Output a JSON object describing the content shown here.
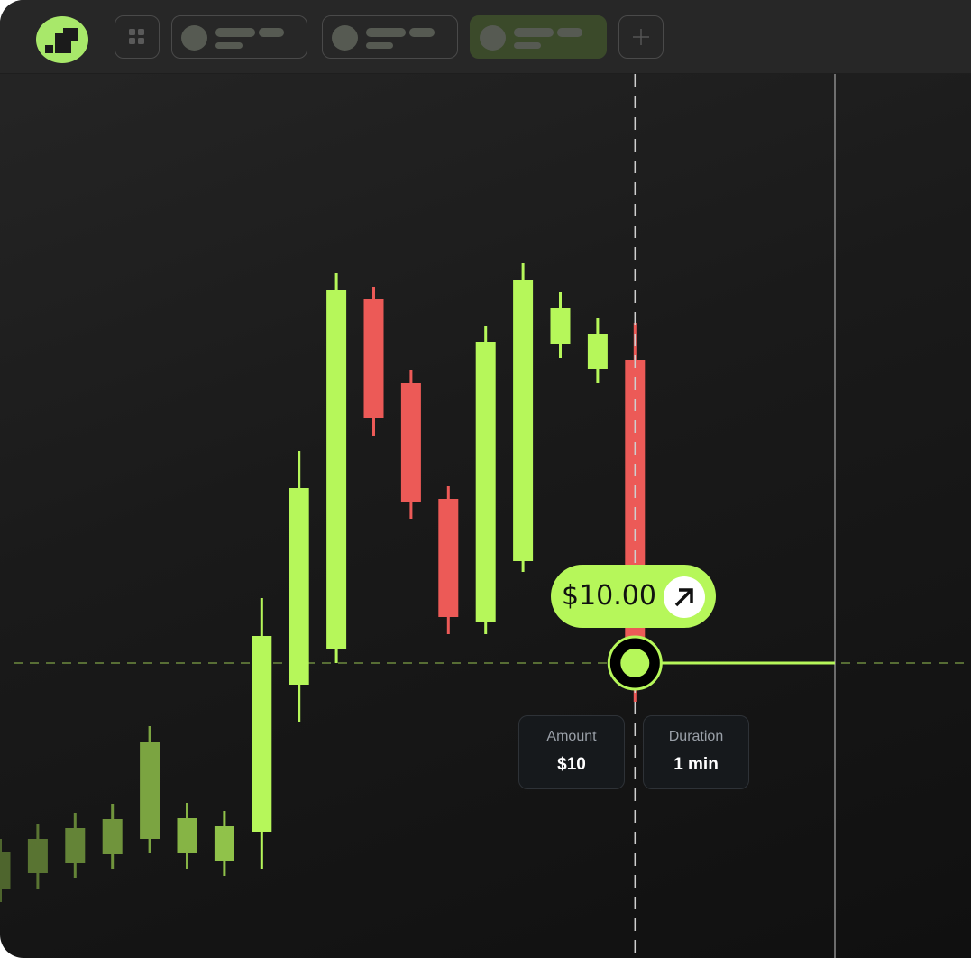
{
  "topbar": {
    "tabs": [
      {
        "state": "inactive"
      },
      {
        "state": "inactive"
      },
      {
        "state": "active"
      }
    ],
    "icons": {
      "logo": "app-logo",
      "grid": "grid-icon",
      "add": "plus-icon"
    }
  },
  "trade": {
    "price_label": "$10.00",
    "direction_icon": "arrow-up-right-icon",
    "amount_label": "Amount",
    "amount_value": "$10",
    "duration_label": "Duration",
    "duration_value": "1 min"
  },
  "colors": {
    "up": "#b6f75a",
    "down": "#ec5a57",
    "accent": "#b6f75a"
  },
  "chart_data": {
    "type": "candlestick",
    "grid": false,
    "strike_price": 327,
    "candles": [
      {
        "o": 77,
        "h": 132,
        "l": 62,
        "c": 117
      },
      {
        "o": 94,
        "h": 149,
        "l": 77,
        "c": 132
      },
      {
        "o": 105,
        "h": 161,
        "l": 89,
        "c": 144
      },
      {
        "o": 115,
        "h": 171,
        "l": 99,
        "c": 154
      },
      {
        "o": 132,
        "h": 257,
        "l": 116,
        "c": 240
      },
      {
        "o": 116,
        "h": 172,
        "l": 99,
        "c": 155
      },
      {
        "o": 107,
        "h": 163,
        "l": 91,
        "c": 146
      },
      {
        "o": 140,
        "h": 399,
        "l": 99,
        "c": 357
      },
      {
        "o": 303,
        "h": 562,
        "l": 262,
        "c": 521
      },
      {
        "o": 342,
        "h": 759,
        "l": 327,
        "c": 741
      },
      {
        "o": 730,
        "h": 744,
        "l": 579,
        "c": 599
      },
      {
        "o": 637,
        "h": 652,
        "l": 487,
        "c": 506
      },
      {
        "o": 509,
        "h": 523,
        "l": 359,
        "c": 378
      },
      {
        "o": 372,
        "h": 701,
        "l": 359,
        "c": 683
      },
      {
        "o": 440,
        "h": 770,
        "l": 428,
        "c": 752
      },
      {
        "o": 681,
        "h": 738,
        "l": 665,
        "c": 721
      },
      {
        "o": 653,
        "h": 709,
        "l": 637,
        "c": 692
      },
      {
        "o": 663,
        "h": 704,
        "l": 284,
        "c": 327
      }
    ]
  }
}
